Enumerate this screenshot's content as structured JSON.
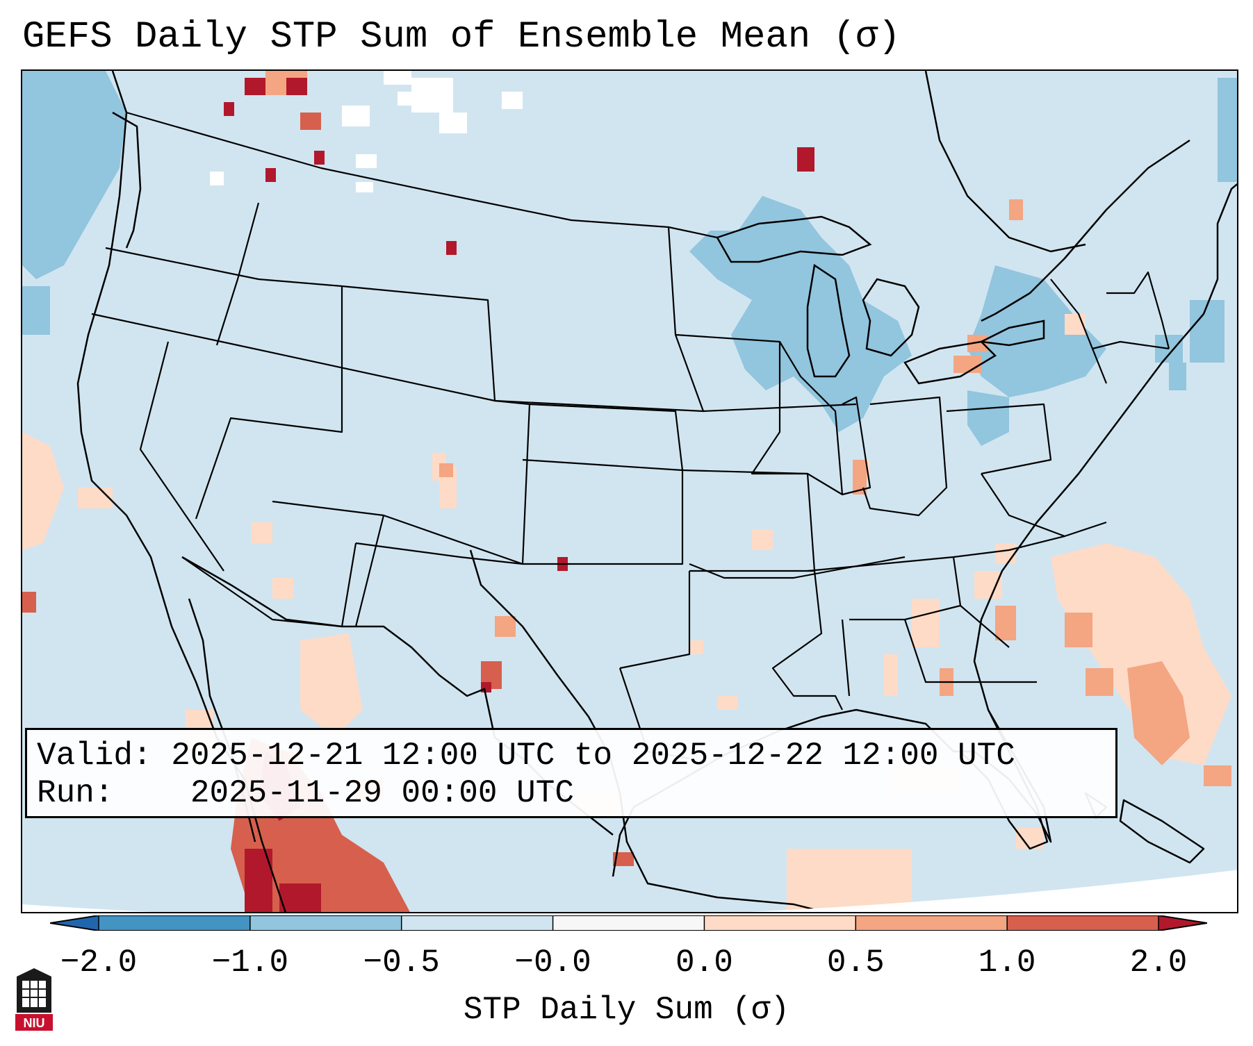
{
  "title": "GEFS Daily STP Sum of Ensemble Mean (σ)",
  "map": {
    "region": "Contiguous United States",
    "ocean_color": "#d1e5f0"
  },
  "info_box": {
    "valid_label": "Valid:",
    "valid_range": "2025-12-21 12:00 UTC to 2025-12-22 12:00 UTC",
    "run_label": "Run:",
    "run_time": "2025-11-29 00:00 UTC"
  },
  "colorbar": {
    "label": "STP Daily Sum (σ)",
    "extend": "both",
    "ticks": [
      "−2.0",
      "−1.0",
      "−0.5",
      "−0.0",
      "0.0",
      "0.5",
      "1.0",
      "2.0"
    ],
    "colors": [
      "#4393c3",
      "#92c5de",
      "#d1e5f0",
      "#f7f7f7",
      "#fddbc7",
      "#f4a582",
      "#d6604d"
    ],
    "under_color": "#2166ac",
    "over_color": "#b2182b"
  },
  "logo": {
    "text": "NIU",
    "icon": "niu-logo-icon"
  }
}
